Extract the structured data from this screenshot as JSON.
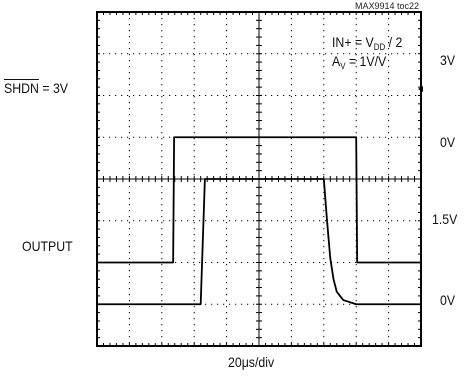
{
  "figure_tag": "MAX9914 toc22",
  "conditions": {
    "in_plus_text": "IN+ = V",
    "in_plus_sub": "DD",
    "in_plus_suffix": " / 2",
    "gain_text": "A",
    "gain_sub": "V",
    "gain_suffix": " = 1V/V"
  },
  "channels": {
    "ch1_name": "SHDN",
    "ch1_value": " = 3V",
    "ch2_name": "OUTPUT"
  },
  "right_labels": {
    "ch1_high": "3V",
    "ch1_low": "0V",
    "ch2_high": "1.5V",
    "ch2_low": "0V"
  },
  "timebase": "20μs/div",
  "colors": {
    "trace": "#000000",
    "grid": "#000000",
    "background": "#ffffff"
  },
  "chart_data": {
    "type": "line",
    "grid": {
      "x_divisions": 10,
      "y_divisions": 8,
      "minor_ticks": 5
    },
    "xlim": [
      0,
      10
    ],
    "series": [
      {
        "name": "SHDN",
        "ylim": [
          -2,
          6
        ],
        "x": [
          0,
          2.35,
          2.38,
          8.0,
          8.03,
          10
        ],
        "y": [
          0,
          0,
          3,
          3,
          0,
          0
        ]
      },
      {
        "name": "OUTPUT",
        "ylim": [
          -0.5,
          3.5
        ],
        "x": [
          0,
          3.2,
          3.33,
          7.0,
          7.1,
          7.2,
          7.3,
          7.4,
          7.6,
          8.0,
          10
        ],
        "y": [
          0,
          0,
          1.5,
          1.5,
          1.0,
          0.55,
          0.3,
          0.15,
          0.05,
          0,
          0
        ]
      }
    ]
  }
}
